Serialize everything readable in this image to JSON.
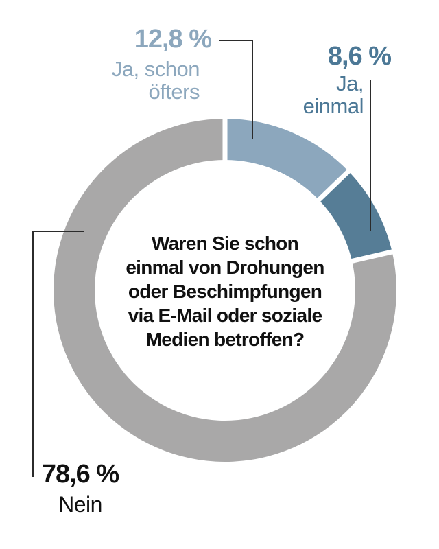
{
  "chart_data": {
    "type": "pie",
    "subtype": "donut",
    "title": "Waren Sie schon einmal von Drohungen oder Beschimpfungen via E-Mail oder soziale Medien betroffen?",
    "title_lines": [
      "Waren Sie schon",
      "einmal von Drohungen",
      "oder Beschimpfungen",
      "via E-Mail oder soziale",
      "Medien betroffen?"
    ],
    "unit": "%",
    "start_angle_deg": 0,
    "direction": "clockwise",
    "legend_position": "callouts",
    "segments": [
      {
        "name": "Ja, schon öfters",
        "slug": "ja-schon-oefters",
        "value_pct": 12.8,
        "display_pct": "12,8 %",
        "label_lines": [
          "Ja, schon",
          "öfters"
        ],
        "color": "#8CA7BD",
        "label_color": "#8CA7BD"
      },
      {
        "name": "Ja, einmal",
        "slug": "ja-einmal",
        "value_pct": 8.6,
        "display_pct": "8,6 %",
        "label_lines": [
          "Ja,",
          "einmal"
        ],
        "color": "#567D96",
        "label_color": "#4C7896"
      },
      {
        "name": "Nein",
        "slug": "nein",
        "value_pct": 78.6,
        "display_pct": "78,6 %",
        "label_lines": [
          "Nein"
        ],
        "color": "#A9A8A8",
        "label_color": "#111111"
      }
    ],
    "colors": {
      "background": "#FFFFFF",
      "separator": "#FFFFFF",
      "leader_line": "#2B2B2B",
      "question_text": "#111111"
    }
  }
}
